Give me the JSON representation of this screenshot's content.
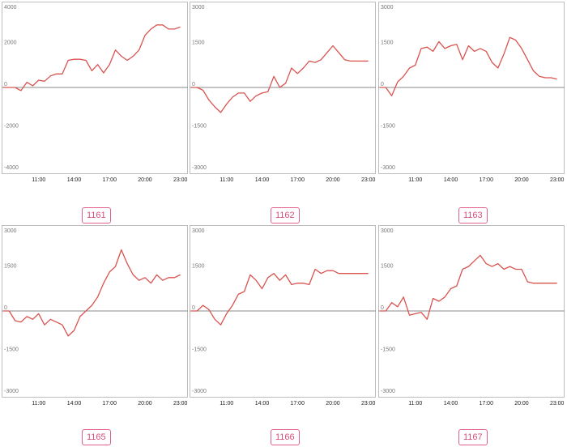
{
  "colors": {
    "line": "#d9534f",
    "zero_line": "#888888",
    "frame": "#bdbdbd",
    "badge": "#d64f7a"
  },
  "chart_data": [
    {
      "type": "line",
      "label": "1161",
      "x_ticks": [
        "11:00",
        "14:00",
        "17:00",
        "20:00",
        "23:00"
      ],
      "y_ticks": [
        4000,
        2000,
        0,
        -2000,
        -4000
      ],
      "ylim": [
        -4000,
        4000
      ],
      "xlim": [
        8,
        23.5
      ],
      "x": [
        8,
        8.5,
        9,
        9.5,
        10,
        10.5,
        11,
        11.5,
        12,
        12.5,
        13,
        13.5,
        14,
        14.5,
        15,
        15.5,
        16,
        16.5,
        17,
        17.5,
        18,
        18.5,
        19,
        19.5,
        20,
        20.5,
        21,
        21.5,
        22,
        22.5,
        23
      ],
      "values": [
        0,
        0,
        0,
        -150,
        250,
        80,
        350,
        300,
        550,
        650,
        650,
        1300,
        1350,
        1350,
        1300,
        800,
        1100,
        700,
        1100,
        1800,
        1500,
        1300,
        1500,
        1800,
        2500,
        2800,
        3000,
        3000,
        2800,
        2800,
        2900
      ]
    },
    {
      "type": "line",
      "label": "1162",
      "x_ticks": [
        "11:00",
        "14:00",
        "17:00",
        "20:00",
        "23:00"
      ],
      "y_ticks": [
        3000,
        1500,
        0,
        -1500,
        -3000
      ],
      "ylim": [
        -3000,
        3000
      ],
      "xlim": [
        8,
        23.5
      ],
      "x": [
        8,
        8.5,
        9,
        9.5,
        10,
        10.5,
        11,
        11.5,
        12,
        12.5,
        13,
        13.5,
        14,
        14.5,
        15,
        15.5,
        16,
        16.5,
        17,
        17.5,
        18,
        18.5,
        19,
        19.5,
        20,
        20.5,
        21,
        21.5,
        22,
        22.5,
        23
      ],
      "values": [
        0,
        0,
        -100,
        -450,
        -700,
        -900,
        -600,
        -350,
        -200,
        -200,
        -500,
        -300,
        -200,
        -150,
        400,
        0,
        150,
        700,
        500,
        700,
        950,
        900,
        1000,
        1250,
        1500,
        1250,
        1000,
        950,
        950,
        950,
        950
      ]
    },
    {
      "type": "line",
      "label": "1163",
      "x_ticks": [
        "11:00",
        "14:00",
        "17:00",
        "20:00",
        "23:00"
      ],
      "y_ticks": [
        3000,
        1500,
        0,
        -1500,
        -3000
      ],
      "ylim": [
        -3000,
        3000
      ],
      "xlim": [
        8,
        23.5
      ],
      "x": [
        8,
        8.5,
        9,
        9.5,
        10,
        10.5,
        11,
        11.5,
        12,
        12.5,
        13,
        13.5,
        14,
        14.5,
        15,
        15.5,
        16,
        16.5,
        17,
        17.5,
        18,
        18.5,
        19,
        19.5,
        20,
        20.5,
        21,
        21.5,
        22,
        22.5,
        23
      ],
      "values": [
        0,
        0,
        -300,
        200,
        400,
        700,
        800,
        1400,
        1450,
        1300,
        1650,
        1400,
        1500,
        1550,
        1000,
        1500,
        1300,
        1400,
        1300,
        900,
        700,
        1200,
        1800,
        1700,
        1400,
        1000,
        600,
        400,
        350,
        350,
        300
      ]
    },
    {
      "type": "line",
      "label": "1165",
      "x_ticks": [
        "11:00",
        "14:00",
        "17:00",
        "20:00",
        "23:00"
      ],
      "y_ticks": [
        3000,
        1500,
        0,
        -1500,
        -3000
      ],
      "ylim": [
        -3000,
        3000
      ],
      "xlim": [
        8,
        23.5
      ],
      "x": [
        8,
        8.5,
        9,
        9.5,
        10,
        10.5,
        11,
        11.5,
        12,
        12.5,
        13,
        13.5,
        14,
        14.5,
        15,
        15.5,
        16,
        16.5,
        17,
        17.5,
        18,
        18.5,
        19,
        19.5,
        20,
        20.5,
        21,
        21.5,
        22,
        22.5,
        23
      ],
      "values": [
        0,
        0,
        -350,
        -400,
        -200,
        -300,
        -100,
        -500,
        -300,
        -400,
        -500,
        -900,
        -700,
        -200,
        0,
        200,
        500,
        1000,
        1400,
        1600,
        2200,
        1700,
        1300,
        1100,
        1200,
        1000,
        1300,
        1100,
        1200,
        1200,
        1300
      ]
    },
    {
      "type": "line",
      "label": "1166",
      "x_ticks": [
        "11:00",
        "14:00",
        "17:00",
        "20:00",
        "23:00"
      ],
      "y_ticks": [
        3000,
        1500,
        0,
        -1500,
        -3000
      ],
      "ylim": [
        -3000,
        3000
      ],
      "xlim": [
        8,
        23.5
      ],
      "x": [
        8,
        8.5,
        9,
        9.5,
        10,
        10.5,
        11,
        11.5,
        12,
        12.5,
        13,
        13.5,
        14,
        14.5,
        15,
        15.5,
        16,
        16.5,
        17,
        17.5,
        18,
        18.5,
        19,
        19.5,
        20,
        20.5,
        21,
        21.5,
        22,
        22.5,
        23
      ],
      "values": [
        0,
        0,
        200,
        50,
        -300,
        -500,
        -100,
        200,
        600,
        700,
        1300,
        1100,
        800,
        1200,
        1350,
        1100,
        1300,
        950,
        1000,
        1000,
        950,
        1500,
        1350,
        1450,
        1450,
        1350,
        1350,
        1350,
        1350,
        1350,
        1350
      ]
    },
    {
      "type": "line",
      "label": "1167",
      "x_ticks": [
        "11:00",
        "14:00",
        "17:00",
        "20:00",
        "23:00"
      ],
      "y_ticks": [
        3000,
        1500,
        0,
        -1500,
        -3000
      ],
      "ylim": [
        -3000,
        3000
      ],
      "xlim": [
        8,
        23.5
      ],
      "x": [
        8,
        8.5,
        9,
        9.5,
        10,
        10.5,
        11,
        11.5,
        12,
        12.5,
        13,
        13.5,
        14,
        14.5,
        15,
        15.5,
        16,
        16.5,
        17,
        17.5,
        18,
        18.5,
        19,
        19.5,
        20,
        20.5,
        21,
        21.5,
        22,
        22.5,
        23
      ],
      "values": [
        0,
        0,
        300,
        150,
        500,
        -150,
        -100,
        -50,
        -300,
        450,
        350,
        500,
        800,
        900,
        1500,
        1600,
        1800,
        2000,
        1700,
        1600,
        1700,
        1500,
        1600,
        1500,
        1500,
        1050,
        1000,
        1000,
        1000,
        1000,
        1000
      ]
    }
  ]
}
